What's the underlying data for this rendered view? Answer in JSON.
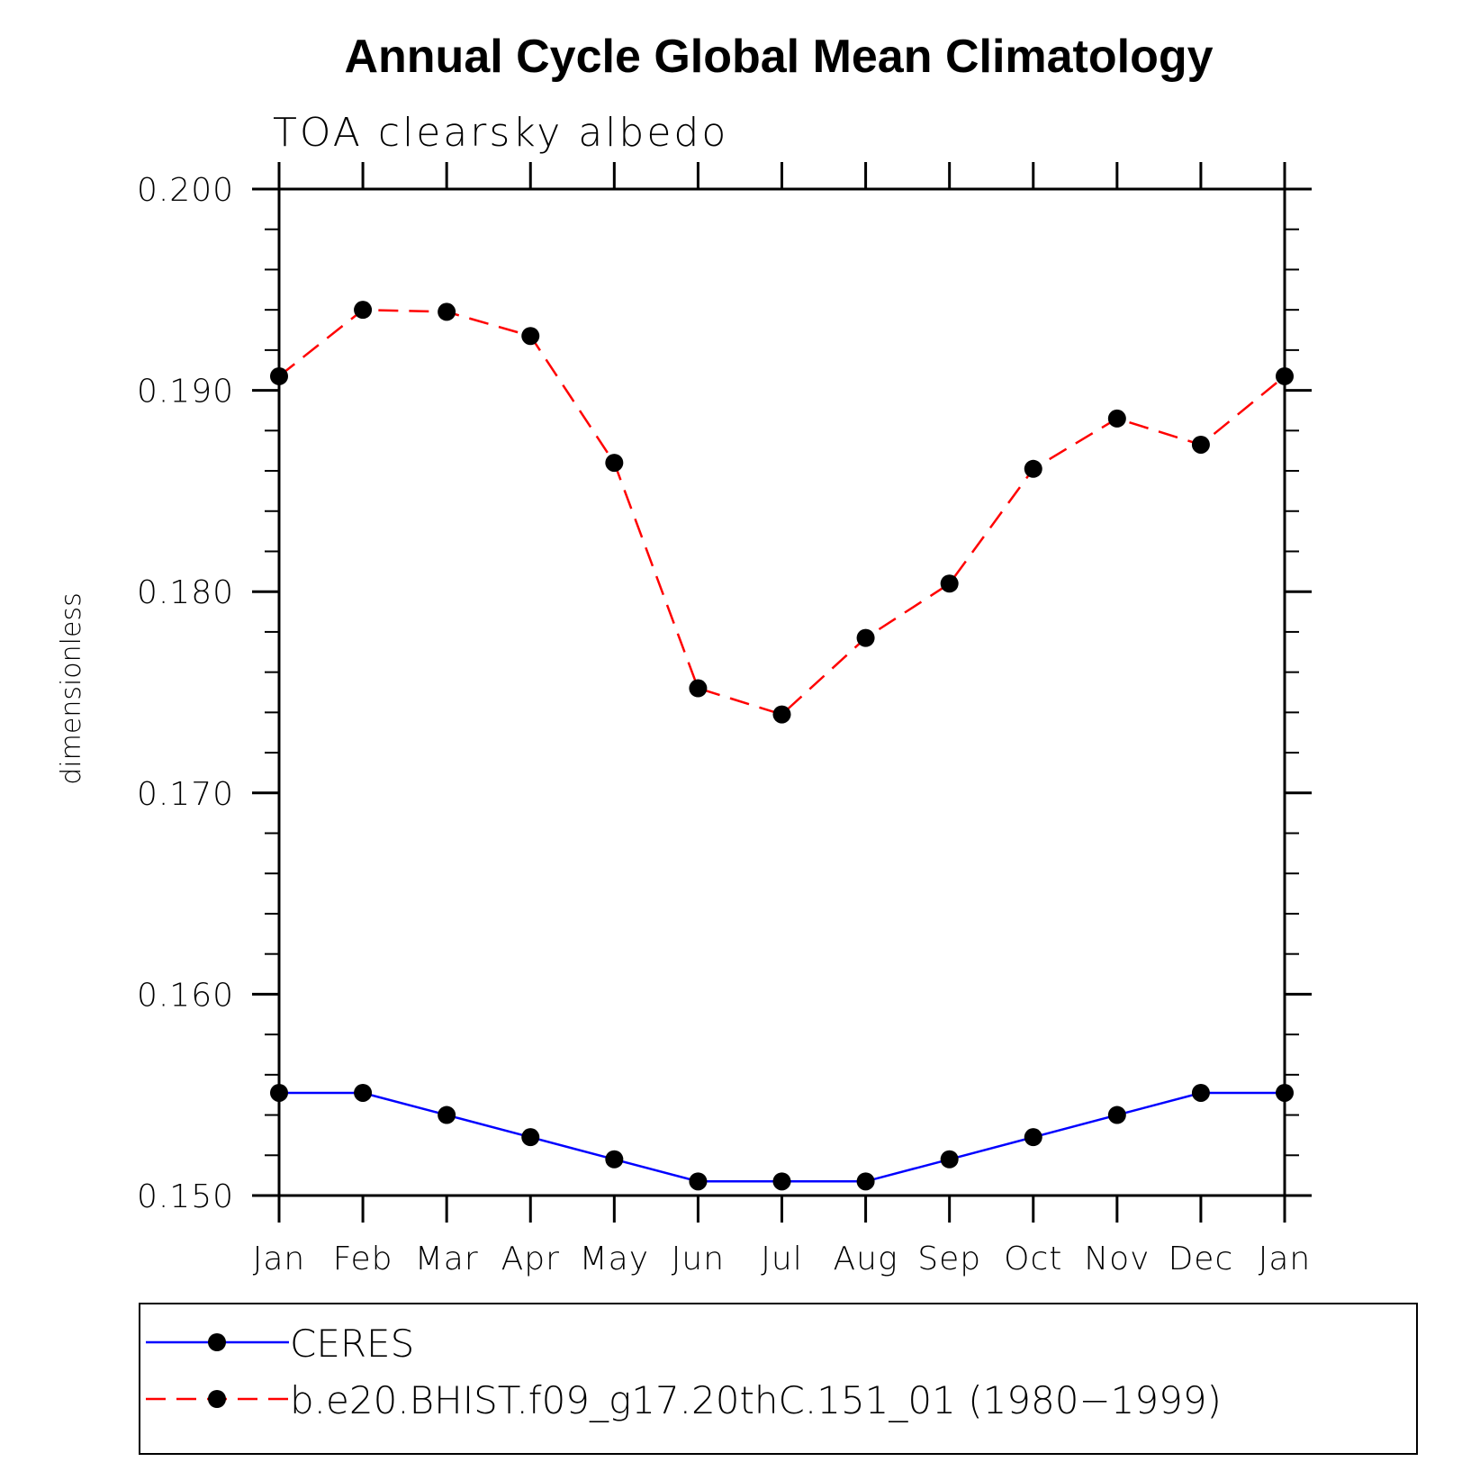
{
  "chart_data": {
    "type": "line",
    "title": "Annual Cycle Global Mean Climatology",
    "subtitle": "TOA clearsky albedo",
    "xlabel": "",
    "ylabel": "dimensionless",
    "categories": [
      "Jan",
      "Feb",
      "Mar",
      "Apr",
      "May",
      "Jun",
      "Jul",
      "Aug",
      "Sep",
      "Oct",
      "Nov",
      "Dec",
      "Jan"
    ],
    "ylim": [
      0.15,
      0.2
    ],
    "yticks": [
      "0.200",
      "0.190",
      "0.180",
      "0.170",
      "0.160",
      "0.150"
    ],
    "ytick_values": [
      0.2,
      0.19,
      0.18,
      0.17,
      0.16,
      0.15
    ],
    "yminor_step": 0.002,
    "grid": false,
    "legend_position": "bottom",
    "series": [
      {
        "name": "CERES",
        "color": "#0000ff",
        "line_style": "solid",
        "marker": "filled-circle",
        "values": [
          0.1551,
          0.1551,
          0.154,
          0.1529,
          0.1518,
          0.1507,
          0.1507,
          0.1507,
          0.1518,
          0.1529,
          0.154,
          0.1551,
          0.1551
        ]
      },
      {
        "name": "b.e20.BHIST.f09_g17.20thC.151_01 (1980−1999)",
        "color": "#ff0000",
        "line_style": "dashed",
        "marker": "filled-circle",
        "values": [
          0.1907,
          0.194,
          0.1939,
          0.1927,
          0.1864,
          0.1752,
          0.1739,
          0.1777,
          0.1804,
          0.1861,
          0.1886,
          0.1873,
          0.1907
        ]
      }
    ]
  }
}
